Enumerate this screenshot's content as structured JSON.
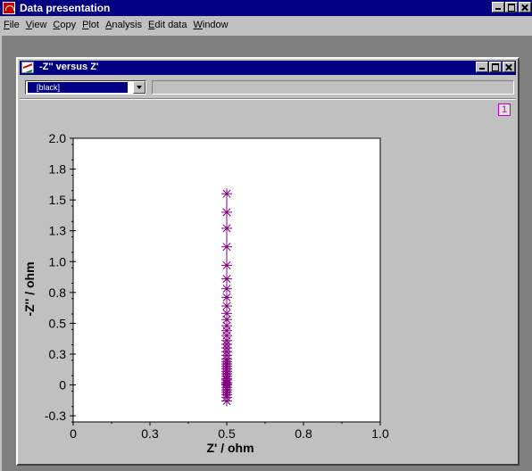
{
  "window": {
    "title": "Data presentation"
  },
  "menu": [
    {
      "label": "File",
      "u": "F",
      "rest": "ile"
    },
    {
      "label": "View",
      "u": "V",
      "rest": "iew"
    },
    {
      "label": "Copy",
      "u": "C",
      "rest": "opy"
    },
    {
      "label": "Plot",
      "u": "P",
      "rest": "lot"
    },
    {
      "label": "Analysis",
      "u": "A",
      "rest": "nalysis"
    },
    {
      "label": "Edit data",
      "u": "E",
      "rest": "dit data"
    },
    {
      "label": "Window",
      "u": "W",
      "rest": "indow"
    }
  ],
  "child_window": {
    "title": "-Z'' versus Z'",
    "series_combo": {
      "value": "[black]"
    },
    "page_number": "1"
  },
  "colors": {
    "series": "#800080",
    "titlebar": "#000080"
  },
  "chart_data": {
    "type": "scatter",
    "xlabel": "Z' / ohm",
    "ylabel": "-Z'' / ohm",
    "xlim": [
      0,
      1.0
    ],
    "ylim": [
      -0.3,
      2.0
    ],
    "x_ticks": [
      "0",
      "0.3",
      "0.5",
      "0.8",
      "1.0"
    ],
    "x_tick_values": [
      0,
      0.25,
      0.5,
      0.75,
      1.0
    ],
    "y_ticks": [
      "2.0",
      "1.8",
      "1.5",
      "1.3",
      "1.0",
      "0.8",
      "0.5",
      "0.3",
      "0",
      "-0.3"
    ],
    "y_tick_values": [
      2.0,
      1.75,
      1.5,
      1.25,
      1.0,
      0.75,
      0.5,
      0.25,
      0,
      -0.25
    ],
    "marker": "asterisk",
    "series": [
      {
        "x": [
          0.5,
          0.5,
          0.5,
          0.5,
          0.5,
          0.5,
          0.5,
          0.5,
          0.5,
          0.5,
          0.5,
          0.5,
          0.5,
          0.5,
          0.5,
          0.5,
          0.5,
          0.5,
          0.5,
          0.5,
          0.5,
          0.5,
          0.5,
          0.5,
          0.5,
          0.5,
          0.5,
          0.5,
          0.5,
          0.5,
          0.5,
          0.5,
          0.5,
          0.5,
          0.5,
          0.5,
          0.5,
          0.5
        ],
        "y": [
          1.55,
          1.4,
          1.27,
          1.12,
          0.97,
          0.86,
          0.78,
          0.71,
          0.64,
          0.58,
          0.53,
          0.48,
          0.44,
          0.4,
          0.36,
          0.33,
          0.3,
          0.27,
          0.24,
          0.21,
          0.19,
          0.17,
          0.15,
          0.13,
          0.11,
          0.09,
          0.07,
          0.05,
          0.04,
          0.02,
          0.01,
          0.0,
          -0.02,
          -0.04,
          -0.06,
          -0.08,
          -0.1,
          -0.13
        ]
      }
    ]
  }
}
